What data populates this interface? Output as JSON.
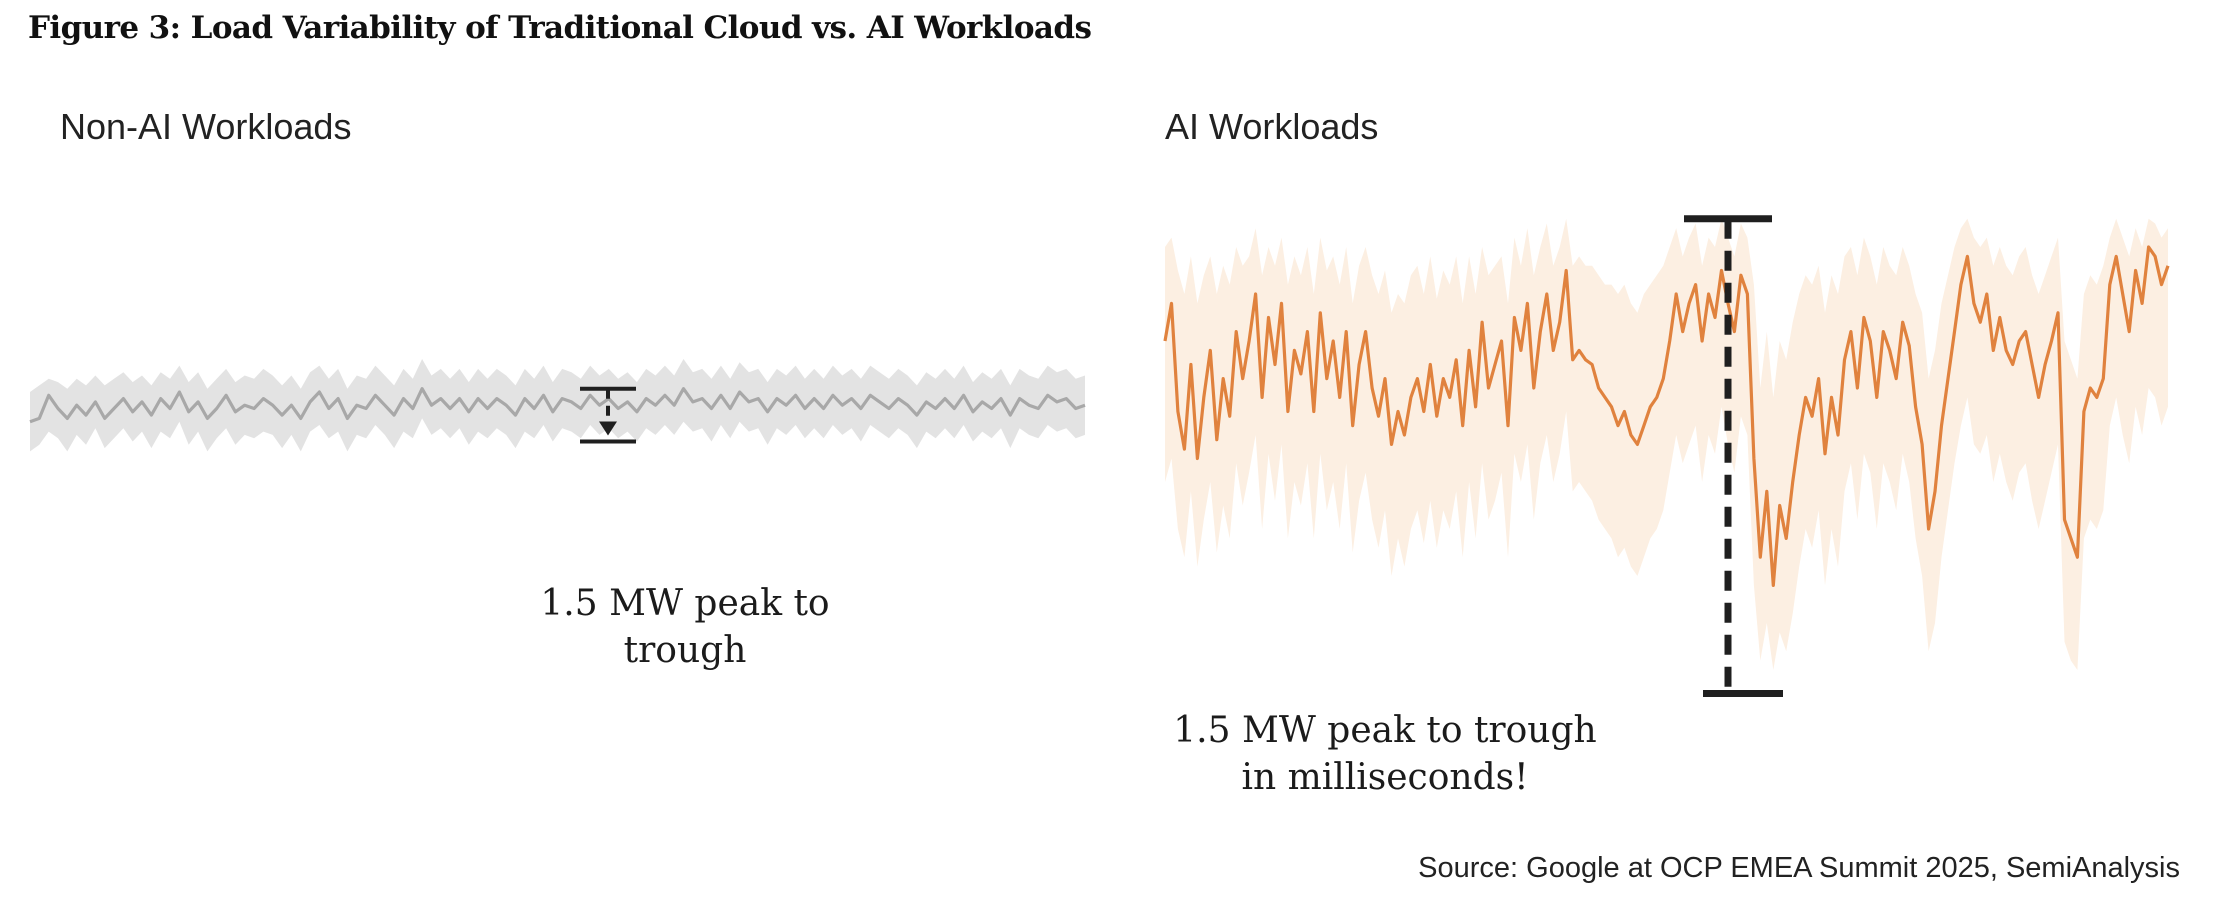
{
  "figure": {
    "title": "Figure 3: Load Variability of Traditional Cloud vs. AI Workloads",
    "source": "Source: Google at OCP EMEA Summit 2025, SemiAnalysis"
  },
  "colors": {
    "non_ai_line": "#a8a8a8",
    "non_ai_band": "#e3e3e3",
    "ai_line": "#e0823e",
    "ai_band": "#fcefe2",
    "marker": "#1f1f1f"
  },
  "chart_data": [
    {
      "type": "line",
      "title": "Non-AI Workloads",
      "xlabel": "",
      "ylabel": "",
      "ylim": [
        0,
        100
      ],
      "grid": false,
      "annotation": {
        "line1": "1.5 MW peak to",
        "line2": "trough",
        "range_top": 61,
        "range_bottom": 45
      },
      "series": [
        {
          "name": "load",
          "values": [
            51,
            52,
            59,
            55,
            52,
            56,
            53,
            57,
            52,
            55,
            58,
            54,
            57,
            53,
            58,
            55,
            60,
            54,
            57,
            52,
            55,
            59,
            54,
            56,
            55,
            58,
            56,
            53,
            56,
            52,
            57,
            60,
            55,
            58,
            52,
            56,
            55,
            59,
            56,
            53,
            58,
            55,
            61,
            56,
            58,
            55,
            58,
            54,
            58,
            55,
            58,
            56,
            53,
            58,
            55,
            59,
            54,
            58,
            57,
            55,
            59,
            56,
            58,
            55,
            57,
            54,
            58,
            56,
            59,
            56,
            61,
            57,
            58,
            55,
            59,
            55,
            60,
            57,
            58,
            54,
            58,
            56,
            59,
            55,
            58,
            55,
            59,
            56,
            58,
            55,
            59,
            57,
            55,
            58,
            56,
            53,
            57,
            55,
            58,
            55,
            59,
            54,
            57,
            55,
            58,
            53,
            58,
            56,
            55,
            59,
            57,
            58,
            55,
            56
          ]
        },
        {
          "name": "band_upper",
          "values": [
            60,
            62,
            64,
            63,
            61,
            64,
            62,
            65,
            62,
            64,
            66,
            63,
            65,
            62,
            66,
            64,
            68,
            63,
            66,
            61,
            64,
            67,
            63,
            65,
            64,
            67,
            65,
            62,
            65,
            61,
            66,
            68,
            64,
            67,
            61,
            65,
            64,
            68,
            65,
            62,
            67,
            64,
            70,
            65,
            67,
            64,
            67,
            63,
            67,
            64,
            67,
            65,
            62,
            67,
            64,
            68,
            63,
            67,
            66,
            64,
            68,
            65,
            67,
            64,
            66,
            63,
            67,
            65,
            68,
            65,
            70,
            66,
            67,
            64,
            68,
            64,
            69,
            66,
            67,
            63,
            67,
            65,
            68,
            64,
            67,
            64,
            68,
            65,
            67,
            64,
            68,
            66,
            64,
            67,
            65,
            62,
            66,
            64,
            67,
            64,
            68,
            63,
            66,
            64,
            67,
            62,
            67,
            65,
            64,
            68,
            66,
            67,
            64,
            65
          ]
        },
        {
          "name": "band_lower",
          "values": [
            42,
            44,
            48,
            46,
            42,
            47,
            44,
            49,
            43,
            46,
            49,
            45,
            48,
            43,
            48,
            46,
            51,
            44,
            48,
            42,
            46,
            49,
            44,
            47,
            46,
            48,
            47,
            43,
            47,
            42,
            48,
            50,
            46,
            48,
            42,
            47,
            46,
            50,
            47,
            43,
            48,
            46,
            52,
            47,
            49,
            46,
            49,
            44,
            48,
            46,
            49,
            47,
            43,
            48,
            46,
            50,
            45,
            49,
            48,
            46,
            50,
            47,
            49,
            46,
            48,
            45,
            49,
            47,
            50,
            47,
            51,
            48,
            49,
            45,
            50,
            46,
            51,
            48,
            49,
            44,
            49,
            47,
            50,
            46,
            49,
            46,
            50,
            47,
            49,
            45,
            50,
            48,
            46,
            49,
            47,
            43,
            48,
            46,
            49,
            46,
            50,
            45,
            48,
            46,
            49,
            43,
            49,
            47,
            46,
            50,
            48,
            49,
            46,
            47
          ]
        }
      ]
    },
    {
      "type": "line",
      "title": "AI Workloads",
      "xlabel": "",
      "ylabel": "",
      "ylim": [
        0,
        100
      ],
      "grid": false,
      "annotation": {
        "line1": "1.5 MW peak to trough",
        "line2": "in milliseconds!",
        "range_top": 96,
        "range_bottom": -5
      },
      "series": [
        {
          "name": "load",
          "values": [
            70,
            78,
            55,
            47,
            65,
            45,
            58,
            68,
            49,
            62,
            54,
            72,
            62,
            70,
            80,
            58,
            75,
            65,
            78,
            55,
            68,
            63,
            72,
            55,
            76,
            62,
            70,
            58,
            72,
            52,
            65,
            72,
            60,
            54,
            62,
            48,
            55,
            50,
            58,
            62,
            55,
            65,
            54,
            62,
            58,
            66,
            52,
            68,
            56,
            74,
            60,
            65,
            70,
            52,
            75,
            68,
            78,
            60,
            72,
            80,
            68,
            74,
            85,
            66,
            68,
            66,
            65,
            60,
            58,
            56,
            52,
            55,
            50,
            48,
            52,
            56,
            58,
            62,
            70,
            80,
            72,
            78,
            82,
            70,
            80,
            75,
            85,
            78,
            72,
            84,
            80,
            45,
            24,
            38,
            18,
            35,
            28,
            40,
            50,
            58,
            54,
            62,
            46,
            58,
            50,
            66,
            72,
            60,
            75,
            70,
            58,
            72,
            68,
            62,
            74,
            69,
            56,
            48,
            30,
            38,
            52,
            62,
            72,
            82,
            88,
            78,
            74,
            80,
            68,
            75,
            68,
            65,
            70,
            72,
            65,
            58,
            65,
            70,
            76,
            32,
            28,
            24,
            55,
            60,
            58,
            62,
            82,
            88,
            80,
            72,
            85,
            78,
            90,
            88,
            82,
            86
          ]
        },
        {
          "name": "band_upper",
          "values": [
            90,
            92,
            85,
            80,
            88,
            78,
            84,
            88,
            80,
            86,
            82,
            90,
            86,
            88,
            94,
            84,
            90,
            86,
            92,
            82,
            88,
            84,
            90,
            80,
            92,
            85,
            88,
            82,
            90,
            78,
            86,
            90,
            84,
            80,
            85,
            76,
            80,
            78,
            84,
            86,
            80,
            88,
            79,
            85,
            82,
            88,
            78,
            88,
            80,
            90,
            84,
            86,
            88,
            78,
            92,
            86,
            94,
            84,
            90,
            95,
            86,
            90,
            96,
            86,
            88,
            86,
            86,
            84,
            82,
            82,
            80,
            82,
            78,
            76,
            80,
            82,
            84,
            86,
            90,
            94,
            88,
            92,
            95,
            86,
            92,
            90,
            96,
            92,
            88,
            95,
            92,
            82,
            60,
            72,
            58,
            70,
            66,
            74,
            80,
            84,
            82,
            86,
            76,
            84,
            80,
            88,
            90,
            84,
            92,
            88,
            82,
            90,
            86,
            84,
            90,
            86,
            80,
            76,
            62,
            68,
            78,
            84,
            90,
            94,
            96,
            92,
            90,
            92,
            86,
            90,
            86,
            84,
            88,
            90,
            84,
            80,
            84,
            88,
            92,
            70,
            66,
            62,
            80,
            84,
            82,
            86,
            92,
            96,
            92,
            88,
            94,
            90,
            96,
            95,
            92,
            94
          ]
        },
        {
          "name": "band_lower",
          "values": [
            40,
            45,
            30,
            24,
            38,
            22,
            32,
            40,
            25,
            35,
            28,
            44,
            35,
            42,
            50,
            30,
            46,
            36,
            48,
            28,
            40,
            35,
            44,
            28,
            46,
            34,
            40,
            30,
            44,
            25,
            36,
            42,
            32,
            26,
            34,
            20,
            28,
            22,
            30,
            34,
            27,
            36,
            26,
            34,
            30,
            38,
            24,
            40,
            28,
            44,
            32,
            36,
            42,
            24,
            46,
            40,
            48,
            32,
            44,
            50,
            40,
            46,
            55,
            38,
            40,
            38,
            36,
            32,
            30,
            28,
            24,
            26,
            22,
            20,
            24,
            28,
            30,
            34,
            42,
            50,
            44,
            48,
            52,
            40,
            50,
            46,
            56,
            48,
            42,
            54,
            50,
            18,
            2,
            10,
            0,
            8,
            4,
            12,
            22,
            30,
            26,
            34,
            18,
            30,
            22,
            38,
            44,
            32,
            46,
            42,
            30,
            44,
            40,
            34,
            46,
            40,
            28,
            20,
            4,
            10,
            24,
            34,
            44,
            52,
            58,
            48,
            46,
            50,
            40,
            46,
            40,
            36,
            42,
            44,
            36,
            30,
            36,
            42,
            48,
            6,
            2,
            0,
            28,
            32,
            30,
            34,
            52,
            58,
            50,
            44,
            56,
            50,
            60,
            58,
            52,
            56
          ]
        }
      ]
    }
  ]
}
